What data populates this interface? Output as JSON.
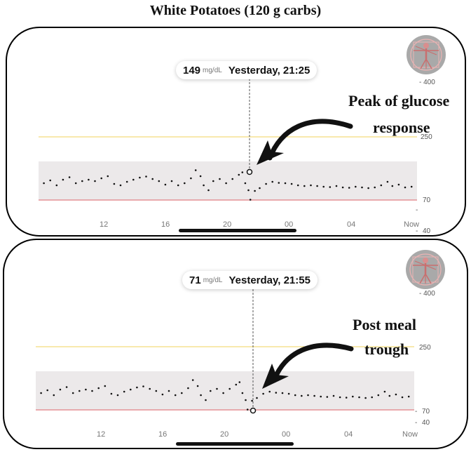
{
  "title": "White Potatoes (120 g carbs)",
  "colors": {
    "target_band": "#ece9ea",
    "high_line": "#f3dc7c",
    "low_line": "#e07f83",
    "points": "#111111"
  },
  "panels": [
    {
      "tooltip": {
        "value": "149",
        "unit": "mg/dL",
        "time": "Yesterday, 21:25"
      },
      "annotation": [
        "Peak of glucose",
        "response"
      ],
      "avatar_icon": "vitruvian-man-icon",
      "y_labels": {
        "max": "- 400",
        "high": "250",
        "low": "70",
        "min": "40"
      },
      "x_labels": [
        "12",
        "16",
        "20",
        "00",
        "04",
        "Now"
      ],
      "marker": {
        "time_hours": 21.42,
        "value": 149
      }
    },
    {
      "tooltip": {
        "value": "71",
        "unit": "mg/dL",
        "time": "Yesterday, 21:55"
      },
      "annotation": [
        "Post meal",
        "trough"
      ],
      "avatar_icon": "vitruvian-man-icon",
      "y_labels": {
        "max": "- 400",
        "high": "250",
        "low": "70",
        "min": "40"
      },
      "x_labels": [
        "12",
        "16",
        "20",
        "00",
        "04",
        "Now"
      ],
      "marker": {
        "time_hours": 21.92,
        "value": 71
      }
    }
  ],
  "chart_data": {
    "type": "scatter",
    "x_unit": "hours (yesterday, continuing past midnight)",
    "xlim": [
      8.8,
      32.3
    ],
    "ylim": [
      40,
      400
    ],
    "target_range": [
      70,
      180
    ],
    "high_threshold": 250,
    "low_threshold": 70,
    "series": [
      {
        "points": [
          [
            9.0,
            118
          ],
          [
            9.4,
            126
          ],
          [
            9.8,
            112
          ],
          [
            10.2,
            128
          ],
          [
            10.6,
            135
          ],
          [
            11.0,
            118
          ],
          [
            11.4,
            124
          ],
          [
            11.8,
            128
          ],
          [
            12.2,
            124
          ],
          [
            12.6,
            132
          ],
          [
            13.0,
            138
          ],
          [
            13.4,
            116
          ],
          [
            13.8,
            112
          ],
          [
            14.2,
            122
          ],
          [
            14.6,
            128
          ],
          [
            15.0,
            134
          ],
          [
            15.4,
            137
          ],
          [
            15.8,
            130
          ],
          [
            16.2,
            124
          ],
          [
            16.6,
            114
          ],
          [
            17.0,
            124
          ],
          [
            17.4,
            112
          ],
          [
            17.8,
            118
          ],
          [
            18.2,
            132
          ],
          [
            18.5,
            155
          ],
          [
            18.8,
            138
          ],
          [
            19.0,
            112
          ],
          [
            19.3,
            98
          ],
          [
            19.6,
            124
          ],
          [
            20.0,
            130
          ],
          [
            20.4,
            118
          ],
          [
            20.8,
            130
          ],
          [
            21.2,
            142
          ],
          [
            21.42,
            149
          ],
          [
            21.6,
            118
          ],
          [
            21.8,
            98
          ],
          [
            21.92,
            71
          ],
          [
            22.2,
            96
          ],
          [
            22.5,
            104
          ],
          [
            22.9,
            116
          ],
          [
            23.3,
            122
          ],
          [
            23.7,
            119
          ],
          [
            24.1,
            118
          ],
          [
            24.5,
            116
          ],
          [
            24.9,
            112
          ],
          [
            25.3,
            110
          ],
          [
            25.7,
            112
          ],
          [
            26.1,
            110
          ],
          [
            26.5,
            108
          ],
          [
            26.9,
            107
          ],
          [
            27.3,
            110
          ],
          [
            27.7,
            106
          ],
          [
            28.1,
            105
          ],
          [
            28.5,
            108
          ],
          [
            28.9,
            106
          ],
          [
            29.3,
            104
          ],
          [
            29.7,
            106
          ],
          [
            30.1,
            112
          ],
          [
            30.5,
            122
          ],
          [
            30.8,
            110
          ],
          [
            31.2,
            114
          ],
          [
            31.6,
            106
          ],
          [
            32.0,
            108
          ]
        ]
      }
    ]
  }
}
